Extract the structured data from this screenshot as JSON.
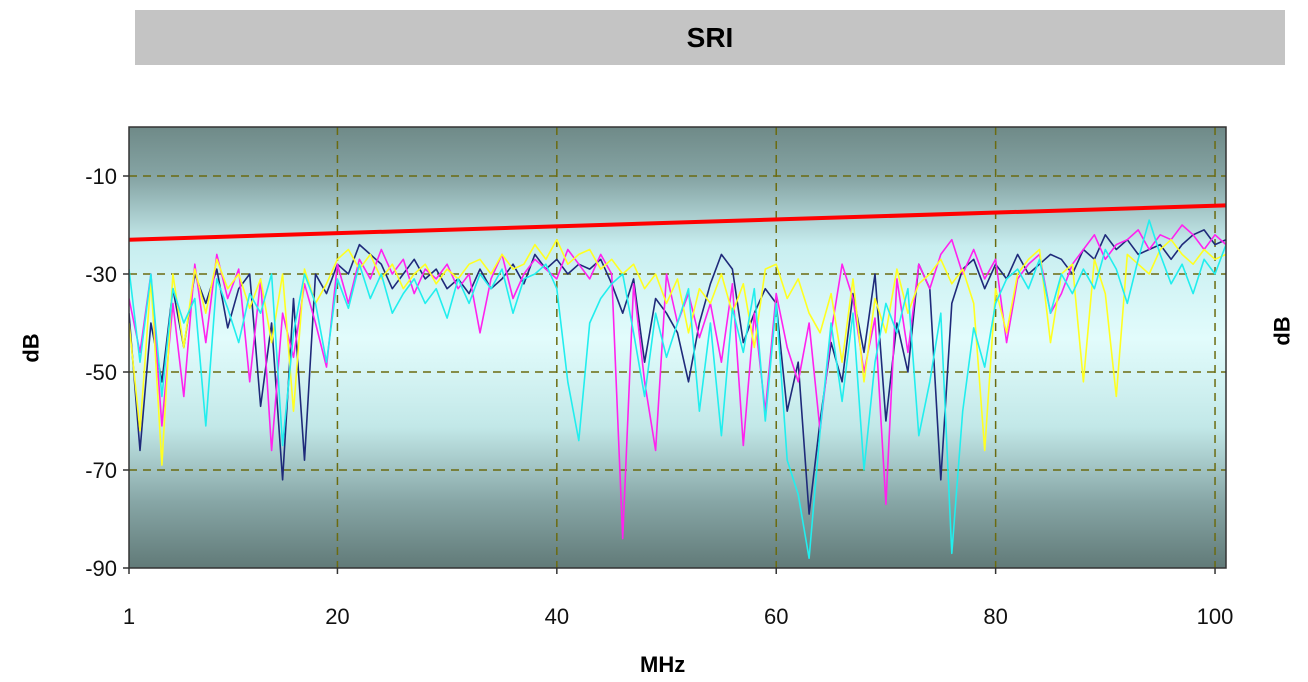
{
  "chart_data": {
    "type": "line",
    "title": "SRI",
    "xlabel": "MHz",
    "ylabel": "dB",
    "ylabel_right": "dB",
    "xlim": [
      1,
      101
    ],
    "ylim": [
      -90,
      0
    ],
    "x_ticks": [
      "1",
      "20",
      "40",
      "60",
      "80",
      "100"
    ],
    "y_ticks": [
      "-10",
      "-30",
      "-50",
      "-70",
      "-90"
    ],
    "grid": true,
    "limit_line": {
      "color": "#ff0000",
      "x": [
        1,
        101
      ],
      "y": [
        -23,
        -16
      ]
    },
    "series": [
      {
        "color": "#1f2a7a",
        "x": [
          1,
          2,
          3,
          4,
          5,
          6,
          7,
          8,
          9,
          10,
          11,
          12,
          13,
          14,
          15,
          16,
          17,
          18,
          19,
          20,
          21,
          22,
          23,
          24,
          25,
          26,
          27,
          28,
          29,
          30,
          31,
          32,
          33,
          34,
          35,
          36,
          37,
          38,
          39,
          40,
          41,
          42,
          43,
          44,
          45,
          46,
          47,
          48,
          49,
          50,
          51,
          52,
          53,
          54,
          55,
          56,
          57,
          58,
          59,
          60,
          61,
          62,
          63,
          64,
          65,
          66,
          67,
          68,
          69,
          70,
          71,
          72,
          73,
          74,
          75,
          76,
          77,
          78,
          79,
          80,
          81,
          82,
          83,
          84,
          85,
          86,
          87,
          88,
          89,
          90,
          91,
          92,
          93,
          94,
          95,
          96,
          97,
          98,
          99,
          100,
          101
        ],
        "y": [
          -38,
          -66,
          -40,
          -52,
          -33,
          -45,
          -30,
          -36,
          -29,
          -41,
          -33,
          -30,
          -57,
          -40,
          -72,
          -35,
          -68,
          -30,
          -34,
          -28,
          -30,
          -24,
          -26,
          -28,
          -33,
          -30,
          -27,
          -31,
          -29,
          -33,
          -31,
          -34,
          -29,
          -33,
          -31,
          -28,
          -32,
          -26,
          -29,
          -27,
          -30,
          -28,
          -29,
          -27,
          -32,
          -38,
          -31,
          -48,
          -35,
          -38,
          -42,
          -52,
          -40,
          -32,
          -26,
          -29,
          -44,
          -38,
          -33,
          -36,
          -58,
          -48,
          -79,
          -60,
          -44,
          -52,
          -34,
          -46,
          -30,
          -60,
          -40,
          -50,
          -28,
          -33,
          -72,
          -36,
          -29,
          -27,
          -33,
          -28,
          -31,
          -26,
          -30,
          -28,
          -26,
          -27,
          -30,
          -25,
          -27,
          -22,
          -25,
          -23,
          -26,
          -25,
          -24,
          -27,
          -24,
          -22,
          -21,
          -24,
          -23
        ]
      },
      {
        "color": "#ff22ee",
        "x": [
          1,
          2,
          3,
          4,
          5,
          6,
          7,
          8,
          9,
          10,
          11,
          12,
          13,
          14,
          15,
          16,
          17,
          18,
          19,
          20,
          21,
          22,
          23,
          24,
          25,
          26,
          27,
          28,
          29,
          30,
          31,
          32,
          33,
          34,
          35,
          36,
          37,
          38,
          39,
          40,
          41,
          42,
          43,
          44,
          45,
          46,
          47,
          48,
          49,
          50,
          51,
          52,
          53,
          54,
          55,
          56,
          57,
          58,
          59,
          60,
          61,
          62,
          63,
          64,
          65,
          66,
          67,
          68,
          69,
          70,
          71,
          72,
          73,
          74,
          75,
          76,
          77,
          78,
          79,
          80,
          81,
          82,
          83,
          84,
          85,
          86,
          87,
          88,
          89,
          90,
          91,
          92,
          93,
          94,
          95,
          96,
          97,
          98,
          99,
          100,
          101
        ],
        "y": [
          -35,
          -46,
          -30,
          -61,
          -36,
          -55,
          -28,
          -44,
          -26,
          -35,
          -29,
          -52,
          -31,
          -66,
          -38,
          -47,
          -32,
          -40,
          -49,
          -28,
          -36,
          -27,
          -31,
          -25,
          -30,
          -27,
          -34,
          -29,
          -31,
          -28,
          -33,
          -30,
          -42,
          -31,
          -26,
          -35,
          -30,
          -27,
          -29,
          -31,
          -25,
          -28,
          -31,
          -26,
          -30,
          -84,
          -32,
          -52,
          -66,
          -30,
          -40,
          -34,
          -43,
          -36,
          -48,
          -32,
          -65,
          -38,
          -58,
          -34,
          -45,
          -52,
          -40,
          -62,
          -42,
          -28,
          -35,
          -50,
          -39,
          -77,
          -31,
          -46,
          -28,
          -33,
          -26,
          -23,
          -30,
          -25,
          -31,
          -27,
          -44,
          -31,
          -28,
          -26,
          -38,
          -34,
          -28,
          -25,
          -22,
          -27,
          -24,
          -23,
          -21,
          -25,
          -22,
          -23,
          -20,
          -22,
          -25,
          -22,
          -24
        ]
      },
      {
        "color": "#ffff22",
        "x": [
          1,
          2,
          3,
          4,
          5,
          6,
          7,
          8,
          9,
          10,
          11,
          12,
          13,
          14,
          15,
          16,
          17,
          18,
          19,
          20,
          21,
          22,
          23,
          24,
          25,
          26,
          27,
          28,
          29,
          30,
          31,
          32,
          33,
          34,
          35,
          36,
          37,
          38,
          39,
          40,
          41,
          42,
          43,
          44,
          45,
          46,
          47,
          48,
          49,
          50,
          51,
          52,
          53,
          54,
          55,
          56,
          57,
          58,
          59,
          60,
          61,
          62,
          63,
          64,
          65,
          66,
          67,
          68,
          69,
          70,
          71,
          72,
          73,
          74,
          75,
          76,
          77,
          78,
          79,
          80,
          81,
          82,
          83,
          84,
          85,
          86,
          87,
          88,
          89,
          90,
          91,
          92,
          93,
          94,
          95,
          96,
          97,
          98,
          99,
          100,
          101
        ],
        "y": [
          -40,
          -62,
          -31,
          -69,
          -30,
          -45,
          -29,
          -38,
          -27,
          -33,
          -30,
          -37,
          -31,
          -44,
          -30,
          -58,
          -29,
          -36,
          -32,
          -27,
          -25,
          -29,
          -26,
          -31,
          -28,
          -33,
          -30,
          -28,
          -32,
          -29,
          -31,
          -28,
          -27,
          -30,
          -26,
          -29,
          -28,
          -24,
          -27,
          -23,
          -28,
          -26,
          -25,
          -29,
          -27,
          -30,
          -28,
          -33,
          -30,
          -36,
          -31,
          -42,
          -33,
          -36,
          -30,
          -38,
          -32,
          -45,
          -29,
          -28,
          -35,
          -31,
          -38,
          -42,
          -34,
          -48,
          -31,
          -52,
          -35,
          -42,
          -29,
          -38,
          -32,
          -30,
          -27,
          -32,
          -29,
          -36,
          -66,
          -33,
          -42,
          -30,
          -27,
          -25,
          -44,
          -30,
          -28,
          -52,
          -27,
          -34,
          -55,
          -26,
          -28,
          -30,
          -25,
          -23,
          -26,
          -28,
          -25,
          -27,
          -26
        ]
      },
      {
        "color": "#22eeee",
        "x": [
          1,
          2,
          3,
          4,
          5,
          6,
          7,
          8,
          9,
          10,
          11,
          12,
          13,
          14,
          15,
          16,
          17,
          18,
          19,
          20,
          21,
          22,
          23,
          24,
          25,
          26,
          27,
          28,
          29,
          30,
          31,
          32,
          33,
          34,
          35,
          36,
          37,
          38,
          39,
          40,
          41,
          42,
          43,
          44,
          45,
          46,
          47,
          48,
          49,
          50,
          51,
          52,
          53,
          54,
          55,
          56,
          57,
          58,
          59,
          60,
          61,
          62,
          63,
          64,
          65,
          66,
          67,
          68,
          69,
          70,
          71,
          72,
          73,
          74,
          75,
          76,
          77,
          78,
          79,
          80,
          81,
          82,
          83,
          84,
          85,
          86,
          87,
          88,
          89,
          90,
          91,
          92,
          93,
          94,
          95,
          96,
          97,
          98,
          99,
          100,
          101
        ],
        "y": [
          -29,
          -48,
          -30,
          -55,
          -33,
          -40,
          -35,
          -61,
          -31,
          -37,
          -44,
          -34,
          -38,
          -30,
          -65,
          -42,
          -30,
          -36,
          -48,
          -31,
          -37,
          -28,
          -35,
          -30,
          -38,
          -34,
          -31,
          -36,
          -33,
          -39,
          -31,
          -36,
          -30,
          -33,
          -29,
          -38,
          -31,
          -30,
          -28,
          -33,
          -52,
          -64,
          -40,
          -35,
          -32,
          -30,
          -42,
          -55,
          -38,
          -47,
          -40,
          -33,
          -58,
          -40,
          -63,
          -37,
          -46,
          -33,
          -60,
          -36,
          -68,
          -75,
          -88,
          -62,
          -40,
          -56,
          -38,
          -70,
          -48,
          -36,
          -42,
          -33,
          -63,
          -52,
          -38,
          -87,
          -58,
          -41,
          -49,
          -36,
          -31,
          -29,
          -33,
          -27,
          -38,
          -30,
          -34,
          -29,
          -33,
          -25,
          -29,
          -36,
          -27,
          -19,
          -26,
          -32,
          -28,
          -34,
          -27,
          -30,
          -24
        ]
      }
    ]
  }
}
